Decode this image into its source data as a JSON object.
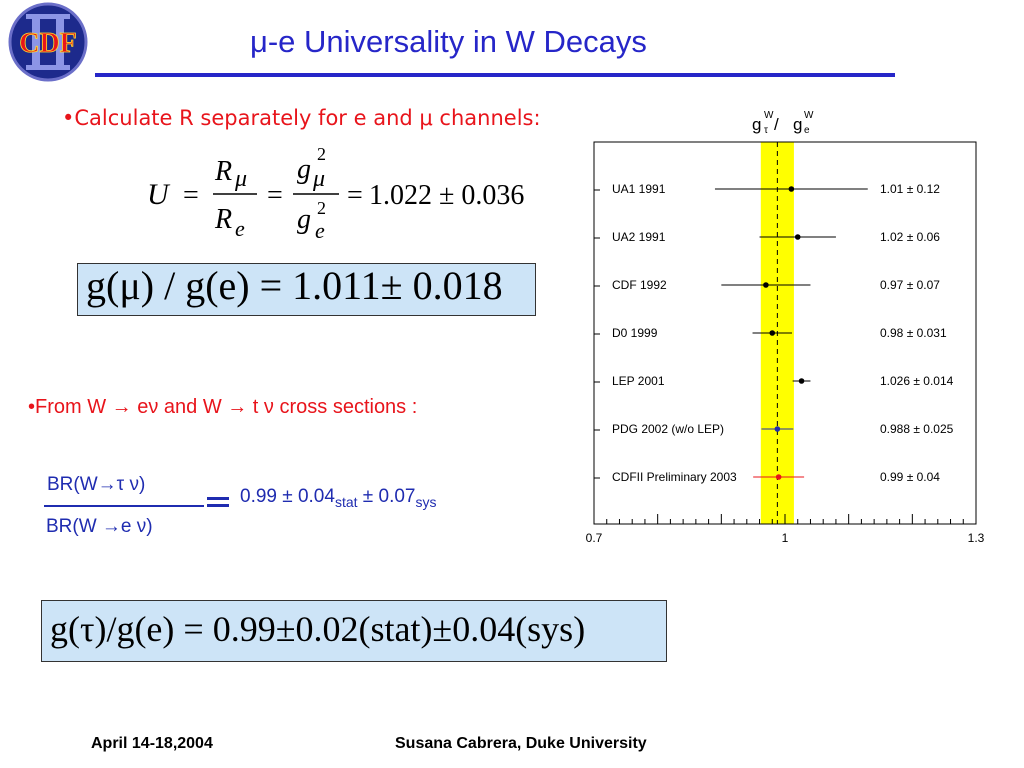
{
  "slide": {
    "title": "μ-e Universality in W Decays",
    "logo_text": "CDF",
    "bullet1": "•Calculate R separately for e and μ channels:",
    "equation_u": "U = Rμ / Re = gμ² / ge² = 1.022 ± 0.036",
    "equation_u_parts": {
      "U": "U",
      "R": "R",
      "mu": "μ",
      "e": "e",
      "g": "g",
      "two": "2",
      "value": "1.022 ± 0.036"
    },
    "box1_equation": "g(μ) / g(e) = 1.011± 0.018",
    "bullet2": "•From W → eν and W → t ν cross sections :",
    "br_numerator": "BR(W→τ ν)",
    "br_denominator": "BR(W →e ν)",
    "br_value_main": "0.99 ± 0.04",
    "br_value_sub1": "stat",
    "br_value_mid": " ± 0.07",
    "br_value_sub2": "sys",
    "box2_equation": "g(τ)/g(e) = 0.99±0.02(stat)±0.04(sys)",
    "footer_date": "April 14-18,2004",
    "footer_author": "Susana Cabrera, Duke University"
  },
  "colors": {
    "title": "#2626c8",
    "bullet": "#e8141b",
    "box": "#cde4f7",
    "band": "#ffff00",
    "logo_red": "#d11",
    "logo_blue": "#1d2a8c"
  },
  "chart_data": {
    "type": "scatter",
    "title": "gτW / geW",
    "title_parts": {
      "g1": "g",
      "sup1": "W",
      "sub1": "τ",
      "sep": " / ",
      "g2": "g",
      "sup2": "W",
      "sub2": "e"
    },
    "xlim": [
      0.7,
      1.3
    ],
    "x_tick_labels": [
      "0.7",
      "1",
      "1.3"
    ],
    "band": [
      0.962,
      1.014
    ],
    "reference_line": 0.988,
    "points": [
      {
        "label": "UA1 1991",
        "value": 1.01,
        "err": 0.12,
        "text": "1.01 ± 0.12",
        "color": "#000000"
      },
      {
        "label": "UA2 1991",
        "value": 1.02,
        "err": 0.06,
        "text": "1.02 ± 0.06",
        "color": "#000000"
      },
      {
        "label": "CDF 1992",
        "value": 0.97,
        "err": 0.07,
        "text": "0.97 ± 0.07",
        "color": "#000000"
      },
      {
        "label": "D0  1999",
        "value": 0.98,
        "err": 0.031,
        "text": "0.98 ± 0.031",
        "color": "#000000"
      },
      {
        "label": "LEP 2001",
        "value": 1.026,
        "err": 0.014,
        "text": "1.026 ± 0.014",
        "color": "#000000"
      },
      {
        "label": "PDG 2002 (w/o LEP)",
        "value": 0.988,
        "err": 0.025,
        "text": "0.988 ± 0.025",
        "color": "#1f2cb0"
      },
      {
        "label": "CDFII Preliminary 2003",
        "value": 0.99,
        "err": 0.04,
        "text": "0.99 ± 0.04",
        "color": "#e8141b"
      }
    ]
  }
}
